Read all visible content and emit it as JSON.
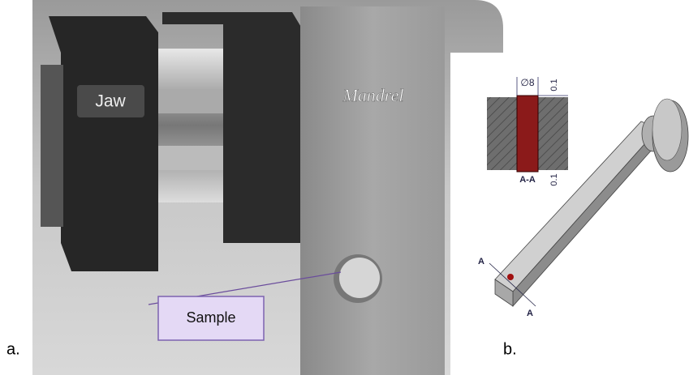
{
  "panel_a": {
    "label": "a.",
    "jaw_label": "Jaw",
    "mandrel_label": "Mandrel",
    "sample_label": "Sample"
  },
  "panel_b": {
    "label": "b.",
    "section": {
      "diameter": "∅8",
      "top_dim": "0.1",
      "bottom_dim": "0.1",
      "section_name": "A-A"
    },
    "cut_marks": [
      "A",
      "A"
    ]
  }
}
